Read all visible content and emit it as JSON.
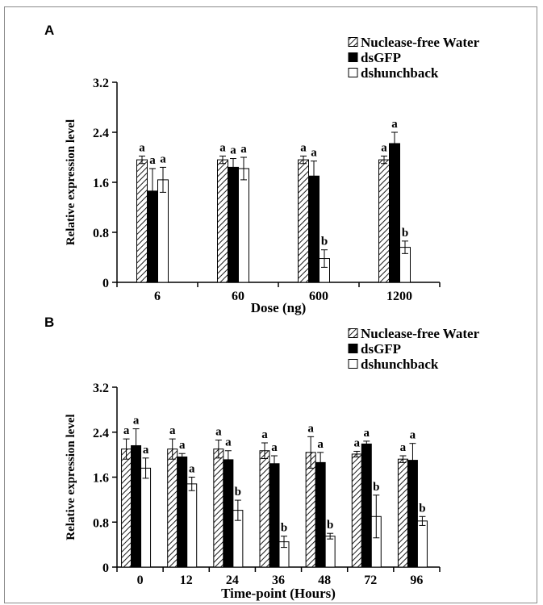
{
  "chart_data": [
    {
      "panel_label": "A",
      "type": "bar",
      "xlabel": "Dose (ng)",
      "ylabel": "Relative expression level",
      "ylim": [
        0,
        3.2
      ],
      "yticks": [
        "0",
        "0.8",
        "1.6",
        "2.4",
        "3.2"
      ],
      "categories": [
        "6",
        "60",
        "600",
        "1200"
      ],
      "legend_position": "top-right",
      "series": [
        {
          "name": "Nuclease-free Water",
          "pattern": "hatched",
          "values": [
            1.96,
            1.96,
            1.96,
            1.96
          ],
          "errors": [
            0.06,
            0.06,
            0.06,
            0.06
          ],
          "letters": [
            "a",
            "a",
            "a",
            "a"
          ]
        },
        {
          "name": "dsGFP",
          "pattern": "black",
          "values": [
            1.46,
            1.84,
            1.7,
            2.22
          ],
          "errors": [
            0.36,
            0.14,
            0.24,
            0.18
          ],
          "letters": [
            "a",
            "a",
            "a",
            "a"
          ]
        },
        {
          "name": "dshunchback",
          "pattern": "white",
          "values": [
            1.64,
            1.82,
            0.38,
            0.56
          ],
          "errors": [
            0.2,
            0.18,
            0.14,
            0.1
          ],
          "letters": [
            "a",
            "a",
            "b",
            "b"
          ]
        }
      ]
    },
    {
      "panel_label": "B",
      "type": "bar",
      "xlabel": "Time-point (Hours)",
      "ylabel": "Relative expression level",
      "ylim": [
        0,
        3.2
      ],
      "yticks": [
        "0",
        "0.8",
        "1.6",
        "2.4",
        "3.2"
      ],
      "categories": [
        "0",
        "12",
        "24",
        "36",
        "48",
        "72",
        "96"
      ],
      "legend_position": "top-right",
      "series": [
        {
          "name": "Nuclease-free Water",
          "pattern": "hatched",
          "values": [
            2.1,
            2.1,
            2.1,
            2.07,
            2.04,
            2.01,
            1.92
          ],
          "errors": [
            0.18,
            0.18,
            0.16,
            0.14,
            0.28,
            0.05,
            0.06
          ],
          "letters": [
            "a",
            "a",
            "a",
            "a",
            "a",
            "a",
            "a"
          ]
        },
        {
          "name": "dsGFP",
          "pattern": "black",
          "values": [
            2.16,
            1.96,
            1.91,
            1.84,
            1.86,
            2.19,
            1.9
          ],
          "errors": [
            0.3,
            0.06,
            0.16,
            0.14,
            0.18,
            0.05,
            0.3
          ],
          "letters": [
            "a",
            "a",
            "a",
            "a",
            "a",
            "a",
            "a"
          ]
        },
        {
          "name": "dshunchback",
          "pattern": "white",
          "values": [
            1.76,
            1.48,
            1.01,
            0.45,
            0.55,
            0.9,
            0.82
          ],
          "errors": [
            0.18,
            0.12,
            0.18,
            0.1,
            0.05,
            0.38,
            0.08
          ],
          "letters": [
            "a",
            "a",
            "b",
            "b",
            "b",
            "b",
            "b"
          ]
        }
      ]
    }
  ]
}
